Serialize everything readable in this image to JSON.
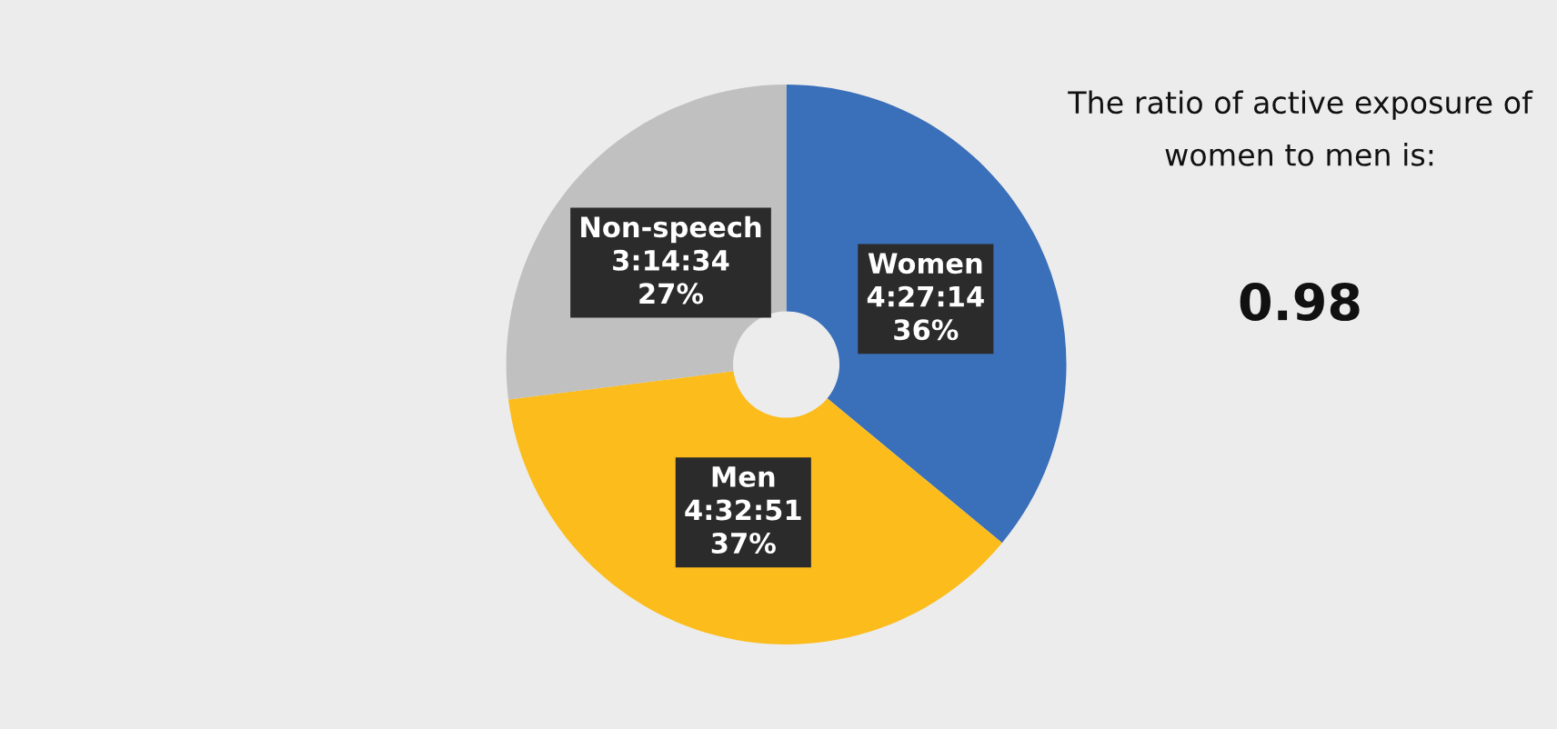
{
  "chart_data": {
    "type": "donut",
    "categories": [
      "Women",
      "Men",
      "Non-speech"
    ],
    "values": [
      36,
      37,
      27
    ],
    "value_labels": [
      "4:27:14\n36%",
      "4:32:51\n37%",
      "3:14:34\n27%"
    ],
    "colors": [
      "#3a6fb9",
      "#fbbc1c",
      "#c0c0c0"
    ],
    "annotations": [
      "The ratio of active exposure of\nwomen to men is:",
      "0.98"
    ],
    "legend": false
  }
}
